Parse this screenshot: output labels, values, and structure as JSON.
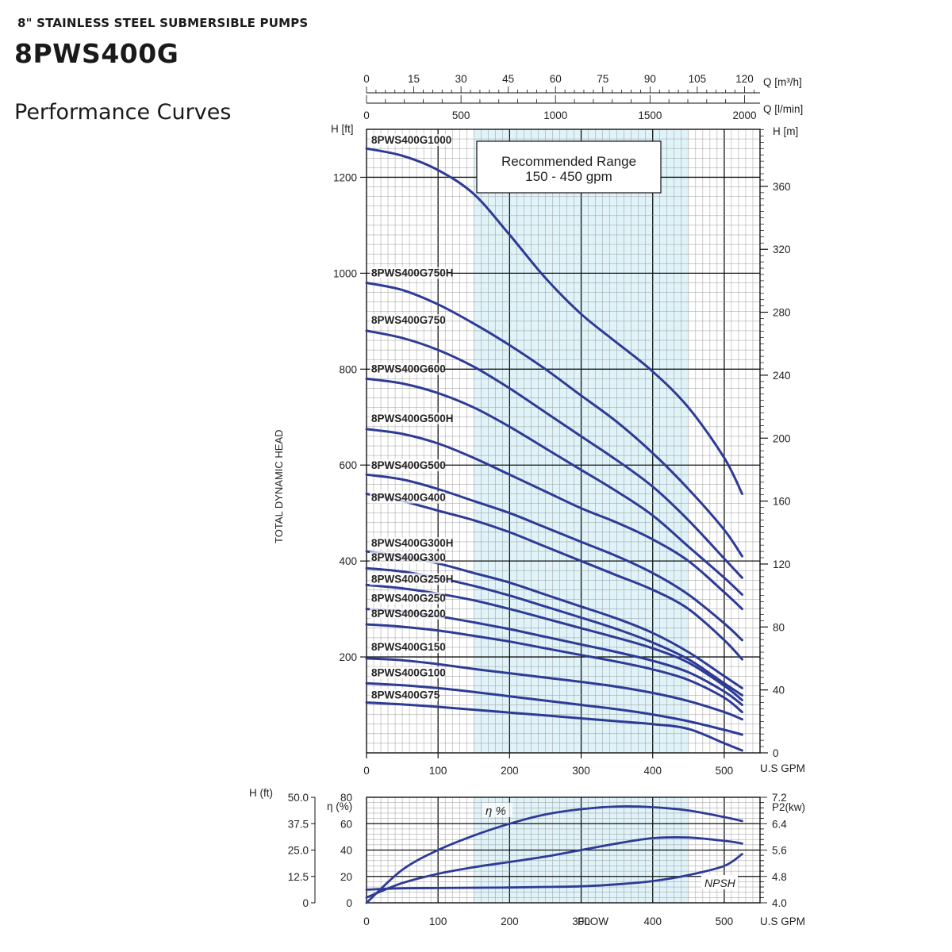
{
  "header": {
    "subtitle": "8\" STAINLESS STEEL SUBMERSIBLE PUMPS",
    "model": "8PWS400G",
    "section": "Performance Curves"
  },
  "colors": {
    "curve": "#2e3b96",
    "band": "#dff3f9",
    "grid": "#9a9a9a",
    "major": "#111111"
  },
  "chart_data": [
    {
      "type": "line",
      "x_unit": "U.S GPM",
      "xlim": [
        0,
        550
      ],
      "x_ticks": [
        0,
        100,
        200,
        300,
        400,
        500
      ],
      "y_unit_left": "H [ft]",
      "ylim_left": [
        0,
        1300
      ],
      "y_ticks_left": [
        200,
        400,
        600,
        800,
        1000,
        1200
      ],
      "y_unit_right": "H [m]",
      "y_ticks_right": [
        0,
        40,
        80,
        120,
        160,
        200,
        240,
        280,
        320,
        360
      ],
      "ylabel": "TOTAL DYNAMIC HEAD",
      "top_axis_m3h": {
        "unit": "Q [m³/h]",
        "ticks": [
          0,
          15,
          30,
          45,
          60,
          75,
          90,
          105,
          120
        ]
      },
      "top_axis_lmin": {
        "unit": "Q [l/min]",
        "ticks": [
          0,
          500,
          1000,
          1500,
          2000
        ]
      },
      "recommended_range": {
        "text1": "Recommended Range",
        "text2": "150 - 450 gpm",
        "from": 150,
        "to": 450
      },
      "grid": true,
      "series": [
        {
          "name": "8PWS400G1000",
          "label_y": 1270,
          "x": [
            0,
            50,
            100,
            150,
            200,
            250,
            300,
            350,
            400,
            450,
            500,
            525
          ],
          "y": [
            1260,
            1245,
            1215,
            1165,
            1080,
            990,
            915,
            855,
            795,
            720,
            615,
            540
          ]
        },
        {
          "name": "8PWS400G750H",
          "label_y": 993,
          "x": [
            0,
            50,
            100,
            150,
            200,
            250,
            300,
            350,
            400,
            450,
            500,
            525
          ],
          "y": [
            980,
            965,
            935,
            895,
            850,
            800,
            745,
            690,
            625,
            550,
            465,
            410
          ]
        },
        {
          "name": "8PWS400G750",
          "label_y": 895,
          "x": [
            0,
            50,
            100,
            150,
            200,
            250,
            300,
            350,
            400,
            450,
            500,
            525
          ],
          "y": [
            880,
            865,
            840,
            805,
            760,
            710,
            660,
            610,
            555,
            485,
            405,
            365
          ]
        },
        {
          "name": "8PWS400G600",
          "label_y": 793,
          "x": [
            0,
            50,
            100,
            150,
            200,
            250,
            300,
            350,
            400,
            450,
            500,
            525
          ],
          "y": [
            780,
            770,
            750,
            720,
            680,
            635,
            590,
            545,
            495,
            430,
            365,
            330
          ]
        },
        {
          "name": "8PWS400G500H",
          "label_y": 690,
          "x": [
            0,
            50,
            100,
            150,
            200,
            250,
            300,
            350,
            400,
            450,
            500,
            525
          ],
          "y": [
            675,
            665,
            645,
            615,
            580,
            545,
            510,
            480,
            445,
            400,
            335,
            300
          ]
        },
        {
          "name": "8PWS400G500",
          "label_y": 592,
          "x": [
            0,
            50,
            100,
            150,
            200,
            250,
            300,
            350,
            400,
            450,
            500,
            525
          ],
          "y": [
            580,
            570,
            550,
            525,
            500,
            470,
            440,
            410,
            375,
            330,
            270,
            235
          ]
        },
        {
          "name": "8PWS400G400",
          "label_y": 525,
          "x": [
            0,
            50,
            100,
            150,
            200,
            250,
            300,
            350,
            400,
            450,
            500,
            525
          ],
          "y": [
            540,
            525,
            505,
            485,
            460,
            430,
            400,
            370,
            340,
            300,
            235,
            195
          ]
        },
        {
          "name": "8PWS400G300H",
          "label_y": 430,
          "x": [
            0,
            50,
            100,
            150,
            200,
            250,
            300,
            350,
            400,
            450,
            500,
            525
          ],
          "y": [
            420,
            410,
            395,
            375,
            355,
            330,
            305,
            280,
            250,
            210,
            160,
            135
          ]
        },
        {
          "name": "8PWS400G300",
          "label_y": 400,
          "x": [
            0,
            50,
            100,
            150,
            200,
            250,
            300,
            350,
            400,
            450,
            500,
            525
          ],
          "y": [
            385,
            378,
            365,
            348,
            328,
            305,
            282,
            258,
            230,
            195,
            145,
            120
          ]
        },
        {
          "name": "8PWS400G250H",
          "label_y": 355,
          "x": [
            0,
            50,
            100,
            150,
            200,
            250,
            300,
            350,
            400,
            450,
            500,
            525
          ],
          "y": [
            350,
            343,
            332,
            318,
            300,
            280,
            260,
            240,
            218,
            188,
            140,
            110
          ]
        },
        {
          "name": "8PWS400G250",
          "label_y": 315,
          "x": [
            0,
            50,
            100,
            150,
            200,
            250,
            300,
            350,
            400,
            450,
            500,
            525
          ],
          "y": [
            300,
            295,
            285,
            272,
            258,
            242,
            226,
            210,
            192,
            168,
            128,
            100
          ]
        },
        {
          "name": "8PWS400G200",
          "label_y": 283,
          "x": [
            0,
            50,
            100,
            150,
            200,
            250,
            300,
            350,
            400,
            450,
            500,
            525
          ],
          "y": [
            268,
            263,
            255,
            244,
            232,
            218,
            204,
            190,
            174,
            152,
            115,
            85
          ]
        },
        {
          "name": "8PWS400G150",
          "label_y": 213,
          "x": [
            0,
            50,
            100,
            150,
            200,
            250,
            300,
            350,
            400,
            450,
            500,
            525
          ],
          "y": [
            197,
            193,
            185,
            175,
            166,
            157,
            148,
            138,
            125,
            108,
            85,
            70
          ]
        },
        {
          "name": "8PWS400G100",
          "label_y": 160,
          "x": [
            0,
            50,
            100,
            150,
            200,
            250,
            300,
            350,
            400,
            450,
            500,
            525
          ],
          "y": [
            145,
            141,
            135,
            127,
            118,
            109,
            100,
            91,
            80,
            66,
            48,
            38
          ]
        },
        {
          "name": "8PWS400G75",
          "label_y": 113,
          "x": [
            0,
            50,
            100,
            150,
            200,
            250,
            300,
            350,
            400,
            450,
            500,
            525
          ],
          "y": [
            105,
            101,
            96,
            90,
            84,
            78,
            72,
            66,
            60,
            50,
            20,
            5
          ]
        }
      ]
    },
    {
      "type": "line",
      "xlabel": "FLOW",
      "x_unit": "U.S GPM",
      "xlim": [
        0,
        550
      ],
      "x_ticks": [
        0,
        100,
        200,
        300,
        400,
        500
      ],
      "axis_h_ft": {
        "unit": "H (ft)",
        "ticks": [
          "0",
          "12.5",
          "25.0",
          "37.5",
          "50.0"
        ]
      },
      "axis_eff": {
        "unit": "η (%)",
        "ticks": [
          0,
          20,
          40,
          60,
          80
        ]
      },
      "axis_p2": {
        "unit": "P2(kw)",
        "ticks": [
          "4.0",
          "4.8",
          "5.6",
          "6.4",
          "7.2"
        ]
      },
      "ylim": [
        0,
        80
      ],
      "series": [
        {
          "name": "η %",
          "x": [
            0,
            50,
            100,
            150,
            200,
            250,
            300,
            350,
            400,
            450,
            500,
            525
          ],
          "y": [
            0,
            25,
            40,
            51,
            60,
            67,
            71,
            73,
            72.5,
            70,
            65,
            62
          ]
        },
        {
          "name": "",
          "x": [
            0,
            50,
            100,
            150,
            200,
            250,
            300,
            350,
            400,
            450,
            500,
            525
          ],
          "y": [
            4,
            15,
            22,
            27,
            31,
            35,
            40,
            45,
            49,
            49.5,
            47,
            45
          ]
        },
        {
          "name": "NPSH",
          "x": [
            0,
            50,
            100,
            150,
            200,
            250,
            300,
            350,
            400,
            450,
            500,
            525
          ],
          "y": [
            10,
            11,
            11.2,
            11.4,
            11.6,
            12,
            12.5,
            14,
            16.5,
            21,
            28,
            37
          ]
        }
      ]
    }
  ]
}
